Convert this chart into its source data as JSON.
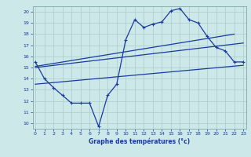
{
  "bg_color": "#cce8e8",
  "line_color": "#1a3a9e",
  "grid_color": "#aacccc",
  "xlabel": "Graphe des températures (°c)",
  "x_ticks": [
    0,
    1,
    2,
    3,
    4,
    5,
    6,
    7,
    8,
    9,
    10,
    11,
    12,
    13,
    14,
    15,
    16,
    17,
    18,
    19,
    20,
    21,
    22,
    23
  ],
  "y_ticks": [
    10,
    11,
    12,
    13,
    14,
    15,
    16,
    17,
    18,
    19,
    20
  ],
  "xlim": [
    -0.3,
    23.3
  ],
  "ylim": [
    9.5,
    20.5
  ],
  "jagged_x": [
    0,
    1,
    2,
    3,
    4,
    5,
    6,
    7,
    8,
    9,
    10,
    11,
    12,
    13,
    14,
    15,
    16,
    17,
    18,
    19,
    20,
    21,
    22,
    23
  ],
  "jagged_y": [
    15.5,
    14.0,
    13.2,
    12.5,
    11.8,
    11.8,
    11.8,
    9.7,
    12.5,
    13.5,
    17.5,
    19.3,
    18.6,
    18.9,
    19.1,
    20.1,
    20.3,
    19.3,
    19.0,
    17.8,
    16.8,
    16.5,
    15.5,
    15.5
  ],
  "upper_line_x": [
    0,
    22
  ],
  "upper_line_y": [
    15.1,
    18.0
  ],
  "lower_line_x": [
    0,
    23
  ],
  "lower_line_y": [
    13.5,
    15.2
  ],
  "mid_line_x": [
    0,
    23
  ],
  "mid_line_y": [
    15.0,
    17.2
  ]
}
